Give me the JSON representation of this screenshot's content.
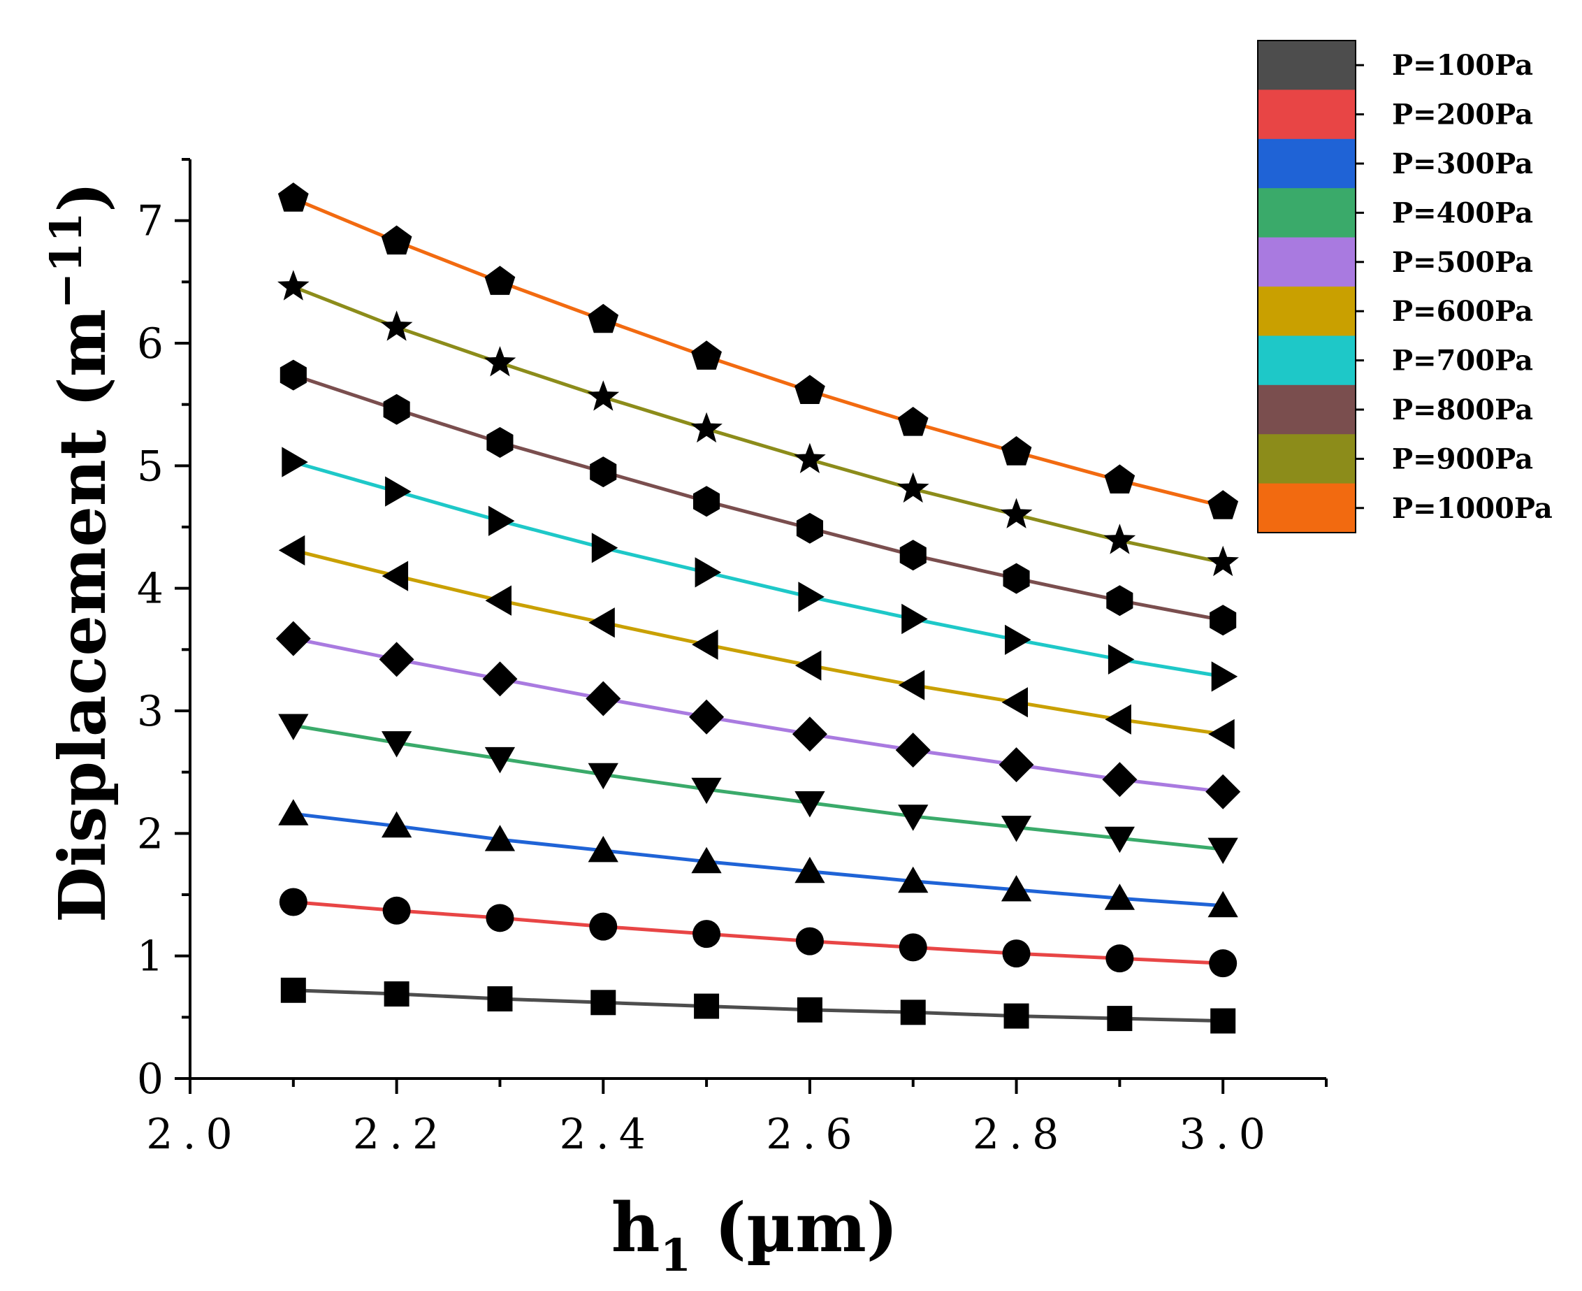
{
  "chart_data": {
    "type": "line",
    "title": "",
    "xlabel": "h1 (µm)",
    "xlabel_main": "h",
    "xlabel_sub": "1",
    "xlabel_units": " (µm)",
    "ylabel": "Displacement (m−11)",
    "ylabel_main": "Displacement (m",
    "ylabel_sup": "−11",
    "ylabel_close": ")",
    "xlim": [
      2.0,
      3.1
    ],
    "ylim": [
      0,
      7.5
    ],
    "xticks": [
      2.0,
      2.2,
      2.4,
      2.6,
      2.8,
      3.0
    ],
    "xtick_labels": [
      "2.0",
      "2.2",
      "2.4",
      "2.6",
      "2.8",
      "3.0"
    ],
    "yticks": [
      0,
      1,
      2,
      3,
      4,
      5,
      6,
      7
    ],
    "ytick_labels": [
      "0",
      "1",
      "2",
      "3",
      "4",
      "5",
      "6",
      "7"
    ],
    "grid": false,
    "legend_position": "top-right",
    "x": [
      2.1,
      2.2,
      2.3,
      2.4,
      2.5,
      2.6,
      2.7,
      2.8,
      2.9,
      3.0
    ],
    "series": [
      {
        "name": "P=100Pa",
        "color": "#4d4d4d",
        "marker": "square",
        "values": [
          0.72,
          0.69,
          0.65,
          0.62,
          0.59,
          0.56,
          0.54,
          0.51,
          0.49,
          0.47
        ]
      },
      {
        "name": "P=200Pa",
        "color": "#e84545",
        "marker": "circle",
        "values": [
          1.44,
          1.37,
          1.31,
          1.24,
          1.18,
          1.12,
          1.07,
          1.02,
          0.98,
          0.94
        ]
      },
      {
        "name": "P=300Pa",
        "color": "#1f63d6",
        "marker": "triangle-up",
        "values": [
          2.16,
          2.06,
          1.95,
          1.86,
          1.77,
          1.69,
          1.61,
          1.54,
          1.47,
          1.41
        ]
      },
      {
        "name": "P=400Pa",
        "color": "#3aaa6a",
        "marker": "triangle-down",
        "values": [
          2.88,
          2.74,
          2.61,
          2.48,
          2.36,
          2.25,
          2.14,
          2.05,
          1.96,
          1.87
        ]
      },
      {
        "name": "P=500Pa",
        "color": "#a97ae0",
        "marker": "diamond",
        "values": [
          3.59,
          3.42,
          3.26,
          3.1,
          2.95,
          2.81,
          2.68,
          2.56,
          2.44,
          2.34
        ]
      },
      {
        "name": "P=600Pa",
        "color": "#c9a000",
        "marker": "triangle-left",
        "values": [
          4.31,
          4.1,
          3.9,
          3.72,
          3.54,
          3.37,
          3.21,
          3.07,
          2.93,
          2.81
        ]
      },
      {
        "name": "P=700Pa",
        "color": "#1ec8c8",
        "marker": "triangle-right",
        "values": [
          5.03,
          4.79,
          4.55,
          4.33,
          4.13,
          3.93,
          3.75,
          3.58,
          3.42,
          3.28
        ]
      },
      {
        "name": "P=800Pa",
        "color": "#7a4e4e",
        "marker": "hexagon",
        "values": [
          5.74,
          5.46,
          5.19,
          4.95,
          4.71,
          4.49,
          4.27,
          4.08,
          3.9,
          3.74
        ]
      },
      {
        "name": "P=900Pa",
        "color": "#8c8c1a",
        "marker": "star",
        "values": [
          6.46,
          6.13,
          5.84,
          5.56,
          5.3,
          5.05,
          4.81,
          4.6,
          4.39,
          4.21
        ]
      },
      {
        "name": "P=1000Pa",
        "color": "#f26a10",
        "marker": "pentagon",
        "values": [
          7.18,
          6.83,
          6.5,
          6.19,
          5.89,
          5.61,
          5.35,
          5.11,
          4.88,
          4.67
        ]
      }
    ]
  }
}
